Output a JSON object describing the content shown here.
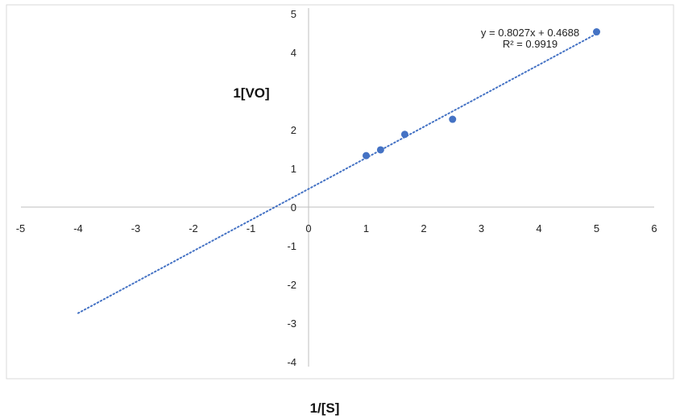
{
  "chart_data": {
    "type": "scatter",
    "title": "",
    "xlabel": "1/[S]",
    "ylabel": "1[VO]",
    "xlim": [
      -5,
      6
    ],
    "ylim": [
      -4,
      5
    ],
    "x_ticks": [
      "-5",
      "-4",
      "-3",
      "-2",
      "-1",
      "0",
      "1",
      "2",
      "3",
      "4",
      "5",
      "6"
    ],
    "y_ticks": [
      "5",
      "4",
      "2",
      "1",
      "0",
      "-1",
      "-2",
      "-3",
      "-4"
    ],
    "grid": false,
    "series": [
      {
        "x": [
          1,
          1.25,
          1.67,
          2.5,
          5
        ],
        "y": [
          1.33,
          1.48,
          1.88,
          2.27,
          4.53
        ],
        "color": "#4472C4"
      }
    ],
    "trendline": {
      "type": "linear",
      "slope": 0.8027,
      "intercept": 0.4688,
      "x_range": [
        -4,
        5
      ],
      "style": "dotted",
      "color": "#4472C4",
      "equation_label": "y = 0.8027x + 0.4688",
      "r2_label": "R² = 0.9919"
    },
    "axis_color": "#bfbfbf"
  }
}
